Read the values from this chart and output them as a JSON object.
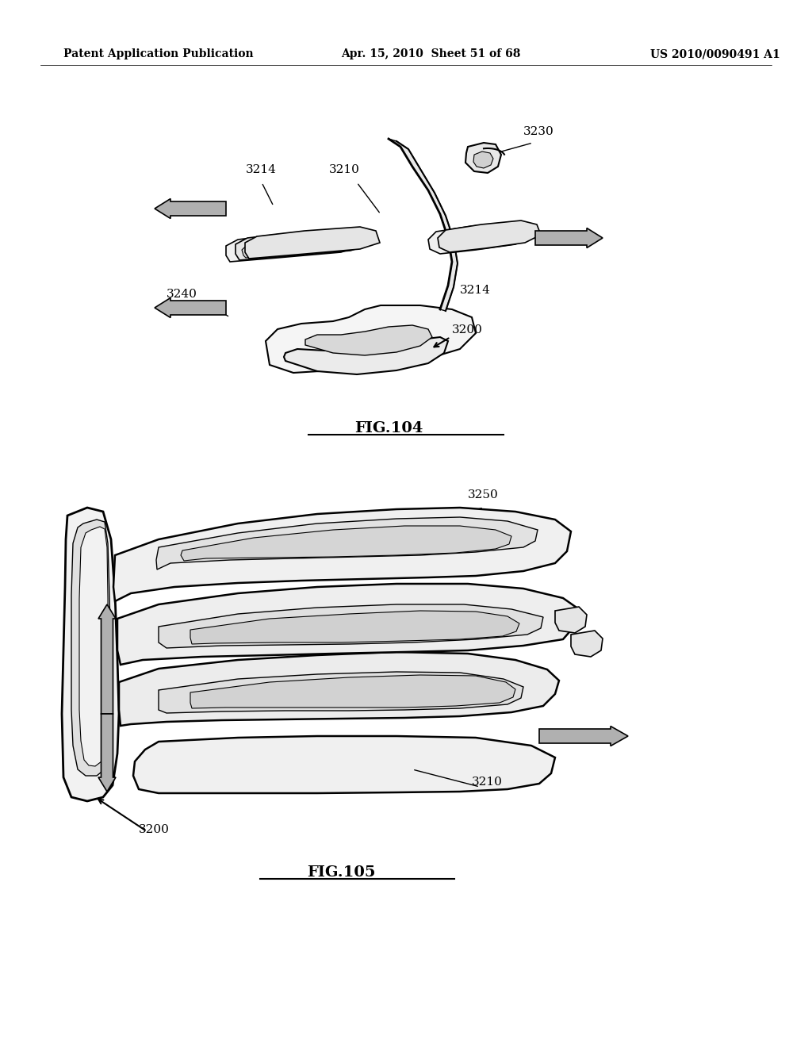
{
  "bg_color": "#ffffff",
  "header_left": "Patent Application Publication",
  "header_mid": "Apr. 15, 2010  Sheet 51 of 68",
  "header_right": "US 2010/0090491 A1",
  "header_fontsize": 10,
  "fig104_caption": "FIG.104",
  "fig105_caption": "FIG.105",
  "caption_fontsize": 14,
  "label_fontsize": 11,
  "line_color": "#000000",
  "arrow_fill": "#b0b0b0",
  "arrow_edge": "#000000"
}
